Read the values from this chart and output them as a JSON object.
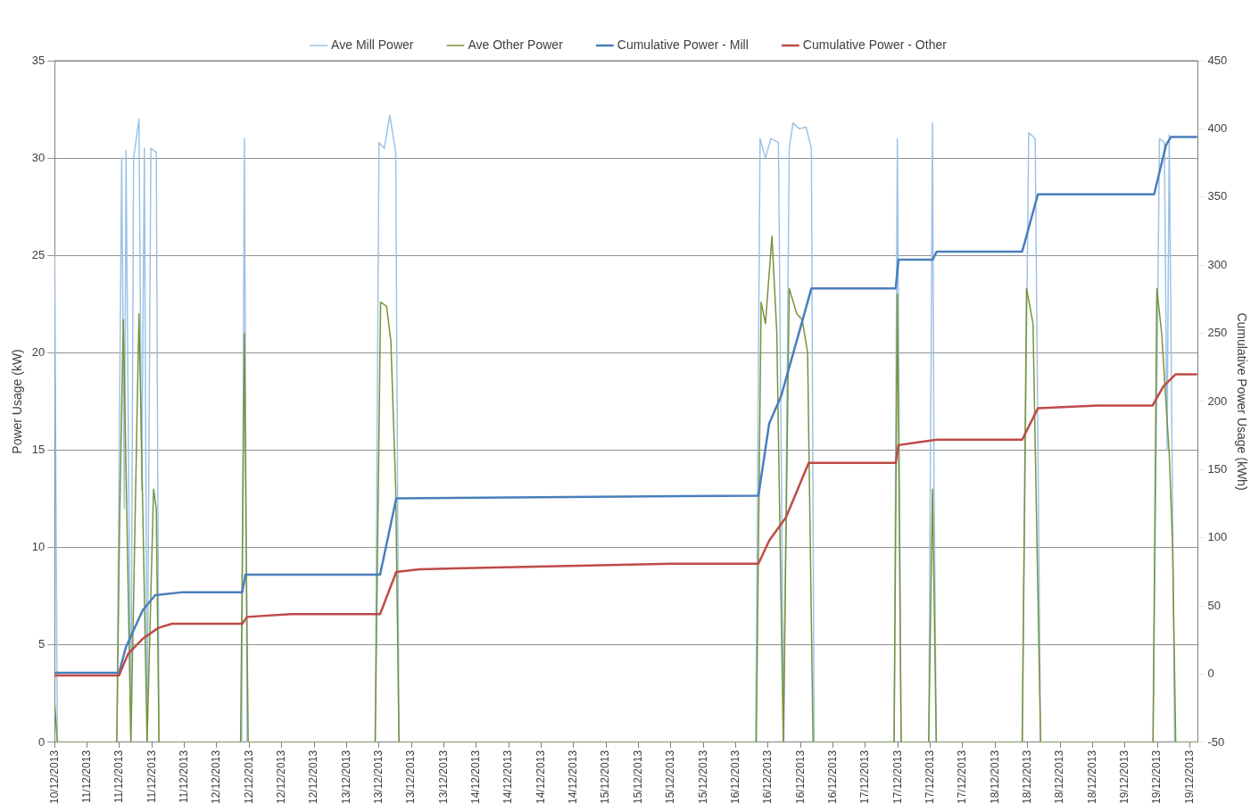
{
  "chart_data": {
    "type": "line",
    "ylabel": "Power Usage (kW)",
    "y2label": "Cumulative Power Usage (kWh)",
    "xlim": [
      "2013-12-10T18:00",
      "2013-12-19T13:30"
    ],
    "xticks": [
      {
        "value": "2013-12-10T18:00",
        "label": "10/12/2013"
      },
      {
        "value": "2013-12-11T00:00",
        "label": "11/12/2013"
      },
      {
        "value": "2013-12-11T06:00",
        "label": "11/12/2013"
      },
      {
        "value": "2013-12-11T12:00",
        "label": "11/12/2013"
      },
      {
        "value": "2013-12-11T18:00",
        "label": "11/12/2013"
      },
      {
        "value": "2013-12-12T00:00",
        "label": "12/12/2013"
      },
      {
        "value": "2013-12-12T06:00",
        "label": "12/12/2013"
      },
      {
        "value": "2013-12-12T12:00",
        "label": "12/12/2013"
      },
      {
        "value": "2013-12-12T18:00",
        "label": "12/12/2013"
      },
      {
        "value": "2013-12-13T00:00",
        "label": "13/12/2013"
      },
      {
        "value": "2013-12-13T06:00",
        "label": "13/12/2013"
      },
      {
        "value": "2013-12-13T12:00",
        "label": "13/12/2013"
      },
      {
        "value": "2013-12-13T18:00",
        "label": "13/12/2013"
      },
      {
        "value": "2013-12-14T00:00",
        "label": "14/12/2013"
      },
      {
        "value": "2013-12-14T06:00",
        "label": "14/12/2013"
      },
      {
        "value": "2013-12-14T12:00",
        "label": "14/12/2013"
      },
      {
        "value": "2013-12-14T18:00",
        "label": "14/12/2013"
      },
      {
        "value": "2013-12-15T00:00",
        "label": "15/12/2013"
      },
      {
        "value": "2013-12-15T06:00",
        "label": "15/12/2013"
      },
      {
        "value": "2013-12-15T12:00",
        "label": "15/12/2013"
      },
      {
        "value": "2013-12-15T18:00",
        "label": "15/12/2013"
      },
      {
        "value": "2013-12-16T00:00",
        "label": "16/12/2013"
      },
      {
        "value": "2013-12-16T06:00",
        "label": "16/12/2013"
      },
      {
        "value": "2013-12-16T12:00",
        "label": "16/12/2013"
      },
      {
        "value": "2013-12-16T18:00",
        "label": "16/12/2013"
      },
      {
        "value": "2013-12-17T00:00",
        "label": "17/12/2013"
      },
      {
        "value": "2013-12-17T06:00",
        "label": "17/12/2013"
      },
      {
        "value": "2013-12-17T12:00",
        "label": "17/12/2013"
      },
      {
        "value": "2013-12-17T18:00",
        "label": "17/12/2013"
      },
      {
        "value": "2013-12-18T00:00",
        "label": "18/12/2013"
      },
      {
        "value": "2013-12-18T06:00",
        "label": "18/12/2013"
      },
      {
        "value": "2013-12-18T12:00",
        "label": "18/12/2013"
      },
      {
        "value": "2013-12-18T18:00",
        "label": "18/12/2013"
      },
      {
        "value": "2013-12-19T00:00",
        "label": "19/12/2013"
      },
      {
        "value": "2013-12-19T06:00",
        "label": "19/12/2013"
      },
      {
        "value": "2013-12-19T12:00",
        "label": "19/12/2013"
      }
    ],
    "ylim": [
      0,
      35
    ],
    "yticks": [
      0,
      5,
      10,
      15,
      20,
      25,
      30,
      35
    ],
    "y2lim": [
      -50,
      450
    ],
    "y2ticks": [
      -50,
      0,
      50,
      100,
      150,
      200,
      250,
      300,
      350,
      400,
      450
    ],
    "grid": "y",
    "legend": "top",
    "marker": "none",
    "line_style": "solid",
    "series": [
      {
        "name": "Ave Mill Power",
        "color": "#9dc3e6",
        "x": [
          "2013-12-10T18:00",
          "2013-12-10T18:30",
          "2013-12-11T05:30",
          "2013-12-11T06:24",
          "2013-12-11T06:54",
          "2013-12-11T07:12",
          "2013-12-11T08:06",
          "2013-12-11T08:36",
          "2013-12-11T09:36",
          "2013-12-11T10:06",
          "2013-12-11T10:36",
          "2013-12-11T11:06",
          "2013-12-11T11:48",
          "2013-12-11T12:48",
          "2013-12-11T13:18",
          "2013-12-12T04:36",
          "2013-12-12T05:06",
          "2013-12-12T05:36",
          "2013-12-13T05:18",
          "2013-12-13T06:00",
          "2013-12-13T07:00",
          "2013-12-13T08:00",
          "2013-12-13T09:06",
          "2013-12-13T09:42",
          "2013-12-16T03:42",
          "2013-12-16T04:30",
          "2013-12-16T05:30",
          "2013-12-16T06:30",
          "2013-12-16T07:54",
          "2013-12-16T08:54",
          "2013-12-16T09:54",
          "2013-12-16T10:36",
          "2013-12-16T11:48",
          "2013-12-16T13:00",
          "2013-12-16T14:00",
          "2013-12-16T14:30",
          "2013-12-17T05:18",
          "2013-12-17T05:54",
          "2013-12-17T06:36",
          "2013-12-17T11:42",
          "2013-12-17T12:24",
          "2013-12-17T12:42",
          "2013-12-17T13:06",
          "2013-12-18T05:00",
          "2013-12-18T06:12",
          "2013-12-18T07:24",
          "2013-12-18T08:24",
          "2013-12-19T05:12",
          "2013-12-19T06:24",
          "2013-12-19T07:18",
          "2013-12-19T07:48",
          "2013-12-19T08:12",
          "2013-12-19T09:12",
          "2013-12-19T13:12"
        ],
        "values": [
          25,
          0,
          0,
          30,
          12,
          30.4,
          0,
          30,
          32,
          13,
          30.5,
          0,
          30.5,
          30.3,
          0,
          0,
          31,
          0,
          0,
          30.8,
          30.5,
          32.2,
          30.3,
          0,
          0,
          31,
          30,
          31,
          30.8,
          0,
          30.5,
          31.8,
          31.5,
          31.6,
          30.5,
          0,
          0,
          31,
          0,
          0,
          31.8,
          13,
          0,
          0,
          31.3,
          31,
          0,
          0,
          31,
          30.8,
          15,
          31.2,
          0,
          0
        ]
      },
      {
        "name": "Ave Other Power",
        "color": "#77933c",
        "x": [
          "2013-12-10T18:00",
          "2013-12-10T18:30",
          "2013-12-11T05:30",
          "2013-12-11T06:00",
          "2013-12-11T06:42",
          "2013-12-11T07:24",
          "2013-12-11T08:06",
          "2013-12-11T09:36",
          "2013-12-11T10:18",
          "2013-12-11T11:06",
          "2013-12-11T12:18",
          "2013-12-11T12:48",
          "2013-12-11T13:18",
          "2013-12-12T04:24",
          "2013-12-12T05:06",
          "2013-12-12T05:24",
          "2013-12-12T05:48",
          "2013-12-13T05:18",
          "2013-12-13T06:18",
          "2013-12-13T07:24",
          "2013-12-13T08:12",
          "2013-12-13T09:06",
          "2013-12-13T09:42",
          "2013-12-16T03:48",
          "2013-12-16T04:42",
          "2013-12-16T05:30",
          "2013-12-16T06:42",
          "2013-12-16T07:36",
          "2013-12-16T08:48",
          "2013-12-16T09:54",
          "2013-12-16T11:18",
          "2013-12-16T12:18",
          "2013-12-16T13:18",
          "2013-12-16T14:18",
          "2013-12-17T05:18",
          "2013-12-17T05:54",
          "2013-12-17T06:36",
          "2013-12-17T11:42",
          "2013-12-17T12:24",
          "2013-12-17T13:06",
          "2013-12-18T05:00",
          "2013-12-18T05:48",
          "2013-12-18T07:00",
          "2013-12-18T08:24",
          "2013-12-19T05:12",
          "2013-12-19T05:54",
          "2013-12-19T06:48",
          "2013-12-19T08:12",
          "2013-12-19T08:48",
          "2013-12-19T09:24",
          "2013-12-19T13:12"
        ],
        "values": [
          2,
          0,
          0,
          11,
          21.7,
          11,
          0,
          22,
          12,
          0,
          13,
          12,
          0,
          0,
          21,
          11,
          0,
          0,
          22.6,
          22.4,
          20.6,
          13,
          0,
          0,
          22.6,
          21.5,
          26,
          21,
          0,
          23.3,
          22,
          21.7,
          20,
          0,
          0,
          23,
          0,
          0,
          13,
          0,
          0,
          23.3,
          21.5,
          0,
          0,
          23.3,
          21,
          14.8,
          10.3,
          0,
          0
        ]
      },
      {
        "name": "Cumulative Power - Mill",
        "color": "#4a7ebb",
        "axis": "y2",
        "x": [
          "2013-12-10T18:00",
          "2013-12-11T05:54",
          "2013-12-11T07:12",
          "2013-12-11T10:18",
          "2013-12-11T12:36",
          "2013-12-11T17:24",
          "2013-12-12T04:42",
          "2013-12-12T05:18",
          "2013-12-13T06:12",
          "2013-12-13T09:12",
          "2013-12-16T04:12",
          "2013-12-16T06:12",
          "2013-12-16T08:24",
          "2013-12-16T12:36",
          "2013-12-16T14:00",
          "2013-12-17T05:36",
          "2013-12-17T06:06",
          "2013-12-17T12:24",
          "2013-12-17T13:12",
          "2013-12-18T05:00",
          "2013-12-18T07:54",
          "2013-12-19T05:24",
          "2013-12-19T07:36",
          "2013-12-19T08:30",
          "2013-12-19T13:12"
        ],
        "values": [
          1,
          1,
          20,
          47,
          58,
          60,
          60,
          73,
          73,
          129,
          131,
          184,
          204,
          263,
          283,
          283,
          304,
          304,
          310,
          310,
          352,
          352,
          388,
          394,
          394
        ]
      },
      {
        "name": "Cumulative Power - Other",
        "color": "#be4b48",
        "axis": "y2",
        "x": [
          "2013-12-10T18:00",
          "2013-12-11T05:54",
          "2013-12-11T07:36",
          "2013-12-11T10:18",
          "2013-12-11T13:12",
          "2013-12-11T15:42",
          "2013-12-12T04:42",
          "2013-12-12T05:36",
          "2013-12-12T13:42",
          "2013-12-13T06:12",
          "2013-12-13T09:12",
          "2013-12-13T13:30",
          "2013-12-14T13:12",
          "2013-12-15T12:06",
          "2013-12-16T04:12",
          "2013-12-16T06:12",
          "2013-12-16T09:18",
          "2013-12-16T13:30",
          "2013-12-17T05:36",
          "2013-12-17T06:06",
          "2013-12-17T13:12",
          "2013-12-18T05:00",
          "2013-12-18T07:54",
          "2013-12-18T18:54",
          "2013-12-19T05:06",
          "2013-12-19T07:06",
          "2013-12-19T09:24",
          "2013-12-19T13:12"
        ],
        "values": [
          -1,
          -1,
          15,
          26,
          34,
          37,
          37,
          42,
          44,
          44,
          75,
          77,
          79,
          81,
          81,
          98,
          115,
          155,
          155,
          168,
          172,
          172,
          195,
          197,
          197,
          211,
          220,
          220
        ]
      }
    ]
  }
}
